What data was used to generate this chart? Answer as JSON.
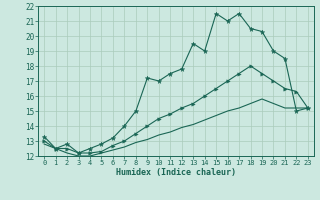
{
  "xlabel": "Humidex (Indice chaleur)",
  "ylabel": "",
  "bg_color": "#cce8e0",
  "grid_color": "#aaccbb",
  "line_color": "#1a6655",
  "xlim": [
    -0.5,
    23.5
  ],
  "ylim": [
    12,
    22
  ],
  "xticks": [
    0,
    1,
    2,
    3,
    4,
    5,
    6,
    7,
    8,
    9,
    10,
    11,
    12,
    13,
    14,
    15,
    16,
    17,
    18,
    19,
    20,
    21,
    22,
    23
  ],
  "yticks": [
    12,
    13,
    14,
    15,
    16,
    17,
    18,
    19,
    20,
    21,
    22
  ],
  "line1_x": [
    0,
    1,
    2,
    3,
    4,
    5,
    6,
    7,
    8,
    9,
    10,
    11,
    12,
    13,
    14,
    15,
    16,
    17,
    18,
    19,
    20,
    21,
    22,
    23
  ],
  "line1_y": [
    13.3,
    12.5,
    12.8,
    12.2,
    12.5,
    12.8,
    13.2,
    14.0,
    15.0,
    17.2,
    17.0,
    17.5,
    17.8,
    19.5,
    19.0,
    21.5,
    21.0,
    21.5,
    20.5,
    20.3,
    19.0,
    18.5,
    15.0,
    15.2
  ],
  "line2_x": [
    0,
    1,
    2,
    3,
    4,
    5,
    6,
    7,
    8,
    9,
    10,
    11,
    12,
    13,
    14,
    15,
    16,
    17,
    18,
    19,
    20,
    21,
    22,
    23
  ],
  "line2_y": [
    13.0,
    12.5,
    12.5,
    12.2,
    12.2,
    12.3,
    12.7,
    13.0,
    13.5,
    14.0,
    14.5,
    14.8,
    15.2,
    15.5,
    16.0,
    16.5,
    17.0,
    17.5,
    18.0,
    17.5,
    17.0,
    16.5,
    16.3,
    15.2
  ],
  "line3_x": [
    0,
    1,
    2,
    3,
    4,
    5,
    6,
    7,
    8,
    9,
    10,
    11,
    12,
    13,
    14,
    15,
    16,
    17,
    18,
    19,
    20,
    21,
    22,
    23
  ],
  "line3_y": [
    12.8,
    12.5,
    12.2,
    12.0,
    12.0,
    12.2,
    12.4,
    12.6,
    12.9,
    13.1,
    13.4,
    13.6,
    13.9,
    14.1,
    14.4,
    14.7,
    15.0,
    15.2,
    15.5,
    15.8,
    15.5,
    15.2,
    15.2,
    15.2
  ],
  "figwidth": 3.2,
  "figheight": 2.0,
  "dpi": 100
}
